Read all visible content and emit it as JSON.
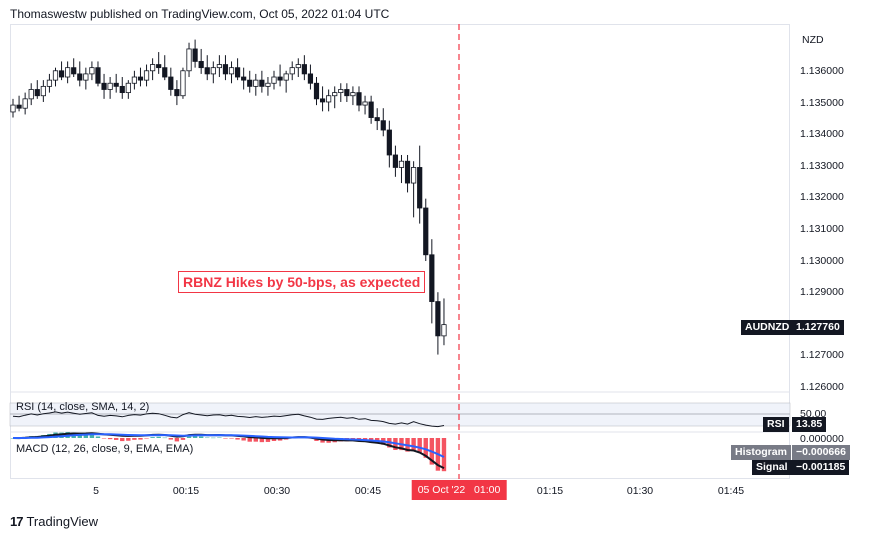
{
  "header": {
    "publisher_line": "Thomaswestw published on TradingView.com, Oct 05, 2022 01:04 UTC"
  },
  "price_axis": {
    "currency": "NZD",
    "ticks": [
      "1.136000",
      "1.135000",
      "1.134000",
      "1.133000",
      "1.132000",
      "1.131000",
      "1.130000",
      "1.129000",
      "1.128000",
      "1.127000",
      "1.126000"
    ],
    "symbol_tag": "AUDNZD",
    "last_price": "1.127760"
  },
  "annotation": {
    "text": "RBNZ Hikes by 50-bps, as expected",
    "color": "#f23645"
  },
  "rsi": {
    "label": "RSI (14, close, SMA, 14, 2)",
    "level": "50.00",
    "tag": "RSI",
    "value": "13.85"
  },
  "macd": {
    "label": "MACD (12, 26, close, 9, EMA, EMA)",
    "zero": "0.000000",
    "histogram_tag": "Histogram",
    "histogram_value": "−0.000666",
    "signal_tag": "Signal",
    "signal_value": "−0.001185"
  },
  "time_axis": {
    "labels": [
      "5",
      "00:15",
      "00:30",
      "00:45",
      "01:15",
      "01:30",
      "01:45"
    ],
    "highlight_date": "05 Oct '22",
    "highlight_time": "01:00"
  },
  "footer": {
    "logo_icon": "tradingview-logo-icon",
    "brand": "TradingView"
  },
  "colors": {
    "up": "#ffffff",
    "down": "#131722",
    "accent": "#f23645",
    "macd_line": "#131722",
    "signal_line": "#2962ff"
  },
  "chart_data": {
    "type": "candlestick",
    "symbol": "AUDNZD",
    "interval_minutes": 1,
    "price_ylim": [
      1.1256,
      1.1374
    ],
    "event_time": "01:00",
    "candles": [
      {
        "t": "23:53",
        "o": 1.13458,
        "h": 1.135,
        "l": 1.1344,
        "c": 1.1348
      },
      {
        "t": "23:54",
        "o": 1.1348,
        "h": 1.1351,
        "l": 1.1346,
        "c": 1.1347
      },
      {
        "t": "23:55",
        "o": 1.1347,
        "h": 1.1352,
        "l": 1.1345,
        "c": 1.135
      },
      {
        "t": "23:56",
        "o": 1.135,
        "h": 1.1355,
        "l": 1.1348,
        "c": 1.1353
      },
      {
        "t": "23:57",
        "o": 1.1353,
        "h": 1.1356,
        "l": 1.135,
        "c": 1.1351
      },
      {
        "t": "23:58",
        "o": 1.1351,
        "h": 1.1356,
        "l": 1.1349,
        "c": 1.1354
      },
      {
        "t": "23:59",
        "o": 1.1354,
        "h": 1.1358,
        "l": 1.1352,
        "c": 1.1356
      },
      {
        "t": "00:00",
        "o": 1.1356,
        "h": 1.136,
        "l": 1.1354,
        "c": 1.1359
      },
      {
        "t": "00:01",
        "o": 1.1359,
        "h": 1.1362,
        "l": 1.1356,
        "c": 1.1357
      },
      {
        "t": "00:02",
        "o": 1.1357,
        "h": 1.1362,
        "l": 1.1355,
        "c": 1.136
      },
      {
        "t": "00:03",
        "o": 1.136,
        "h": 1.1363,
        "l": 1.1357,
        "c": 1.1358
      },
      {
        "t": "00:04",
        "o": 1.1358,
        "h": 1.1362,
        "l": 1.1354,
        "c": 1.1356
      },
      {
        "t": "00:05",
        "o": 1.1356,
        "h": 1.136,
        "l": 1.1353,
        "c": 1.1358
      },
      {
        "t": "00:06",
        "o": 1.1358,
        "h": 1.1362,
        "l": 1.1356,
        "c": 1.136
      },
      {
        "t": "00:07",
        "o": 1.136,
        "h": 1.1362,
        "l": 1.1354,
        "c": 1.1355
      },
      {
        "t": "00:08",
        "o": 1.1355,
        "h": 1.1358,
        "l": 1.135,
        "c": 1.1353
      },
      {
        "t": "00:09",
        "o": 1.1353,
        "h": 1.1357,
        "l": 1.135,
        "c": 1.1355
      },
      {
        "t": "00:10",
        "o": 1.1355,
        "h": 1.1358,
        "l": 1.1352,
        "c": 1.1354
      },
      {
        "t": "00:11",
        "o": 1.1354,
        "h": 1.1357,
        "l": 1.135,
        "c": 1.1352
      },
      {
        "t": "00:12",
        "o": 1.1352,
        "h": 1.1356,
        "l": 1.135,
        "c": 1.1355
      },
      {
        "t": "00:13",
        "o": 1.1355,
        "h": 1.1359,
        "l": 1.1353,
        "c": 1.1357
      },
      {
        "t": "00:14",
        "o": 1.1357,
        "h": 1.136,
        "l": 1.1354,
        "c": 1.1356
      },
      {
        "t": "00:15",
        "o": 1.1356,
        "h": 1.1361,
        "l": 1.1354,
        "c": 1.1359
      },
      {
        "t": "00:16",
        "o": 1.1359,
        "h": 1.1363,
        "l": 1.1356,
        "c": 1.1361
      },
      {
        "t": "00:17",
        "o": 1.1361,
        "h": 1.1365,
        "l": 1.1358,
        "c": 1.136
      },
      {
        "t": "00:18",
        "o": 1.136,
        "h": 1.1364,
        "l": 1.1356,
        "c": 1.1357
      },
      {
        "t": "00:19",
        "o": 1.1357,
        "h": 1.136,
        "l": 1.1351,
        "c": 1.1353
      },
      {
        "t": "00:20",
        "o": 1.1353,
        "h": 1.1356,
        "l": 1.1348,
        "c": 1.1351
      },
      {
        "t": "00:21",
        "o": 1.1351,
        "h": 1.136,
        "l": 1.135,
        "c": 1.1359
      },
      {
        "t": "00:22",
        "o": 1.1359,
        "h": 1.1368,
        "l": 1.1357,
        "c": 1.1366
      },
      {
        "t": "00:23",
        "o": 1.1366,
        "h": 1.1369,
        "l": 1.136,
        "c": 1.1362
      },
      {
        "t": "00:24",
        "o": 1.1362,
        "h": 1.1366,
        "l": 1.1358,
        "c": 1.136
      },
      {
        "t": "00:25",
        "o": 1.136,
        "h": 1.1364,
        "l": 1.1356,
        "c": 1.1358
      },
      {
        "t": "00:26",
        "o": 1.1358,
        "h": 1.1362,
        "l": 1.1355,
        "c": 1.136
      },
      {
        "t": "00:27",
        "o": 1.136,
        "h": 1.1364,
        "l": 1.1357,
        "c": 1.1361
      },
      {
        "t": "00:28",
        "o": 1.1361,
        "h": 1.1364,
        "l": 1.1356,
        "c": 1.1358
      },
      {
        "t": "00:29",
        "o": 1.1358,
        "h": 1.1362,
        "l": 1.1355,
        "c": 1.136
      },
      {
        "t": "00:30",
        "o": 1.136,
        "h": 1.1363,
        "l": 1.1356,
        "c": 1.1357
      },
      {
        "t": "00:31",
        "o": 1.1357,
        "h": 1.136,
        "l": 1.1353,
        "c": 1.1356
      },
      {
        "t": "00:32",
        "o": 1.1356,
        "h": 1.1359,
        "l": 1.1352,
        "c": 1.1354
      },
      {
        "t": "00:33",
        "o": 1.1354,
        "h": 1.1358,
        "l": 1.1351,
        "c": 1.1356
      },
      {
        "t": "00:34",
        "o": 1.1356,
        "h": 1.1359,
        "l": 1.1352,
        "c": 1.1354
      },
      {
        "t": "00:35",
        "o": 1.1354,
        "h": 1.1357,
        "l": 1.1351,
        "c": 1.1355
      },
      {
        "t": "00:36",
        "o": 1.1355,
        "h": 1.1359,
        "l": 1.1353,
        "c": 1.1357
      },
      {
        "t": "00:37",
        "o": 1.1357,
        "h": 1.1361,
        "l": 1.1354,
        "c": 1.1356
      },
      {
        "t": "00:38",
        "o": 1.1356,
        "h": 1.1359,
        "l": 1.1352,
        "c": 1.1358
      },
      {
        "t": "00:39",
        "o": 1.1358,
        "h": 1.1362,
        "l": 1.1356,
        "c": 1.136
      },
      {
        "t": "00:40",
        "o": 1.136,
        "h": 1.1363,
        "l": 1.1357,
        "c": 1.1361
      },
      {
        "t": "00:41",
        "o": 1.1361,
        "h": 1.1364,
        "l": 1.1356,
        "c": 1.1358
      },
      {
        "t": "00:42",
        "o": 1.1358,
        "h": 1.1361,
        "l": 1.1353,
        "c": 1.1355
      },
      {
        "t": "00:43",
        "o": 1.1355,
        "h": 1.1357,
        "l": 1.1348,
        "c": 1.135
      },
      {
        "t": "00:44",
        "o": 1.135,
        "h": 1.1354,
        "l": 1.1346,
        "c": 1.1349
      },
      {
        "t": "00:45",
        "o": 1.1349,
        "h": 1.1353,
        "l": 1.1346,
        "c": 1.1351
      },
      {
        "t": "00:46",
        "o": 1.1351,
        "h": 1.1354,
        "l": 1.1347,
        "c": 1.1352
      },
      {
        "t": "00:47",
        "o": 1.1352,
        "h": 1.1355,
        "l": 1.1349,
        "c": 1.1353
      },
      {
        "t": "00:48",
        "o": 1.1353,
        "h": 1.1355,
        "l": 1.1349,
        "c": 1.1351
      },
      {
        "t": "00:49",
        "o": 1.1351,
        "h": 1.1354,
        "l": 1.1348,
        "c": 1.1352
      },
      {
        "t": "00:50",
        "o": 1.1352,
        "h": 1.1354,
        "l": 1.1346,
        "c": 1.1348
      },
      {
        "t": "00:51",
        "o": 1.1348,
        "h": 1.1351,
        "l": 1.1345,
        "c": 1.1349
      },
      {
        "t": "00:52",
        "o": 1.1349,
        "h": 1.1351,
        "l": 1.1342,
        "c": 1.1344
      },
      {
        "t": "00:53",
        "o": 1.1344,
        "h": 1.1347,
        "l": 1.134,
        "c": 1.1343
      },
      {
        "t": "00:54",
        "o": 1.1343,
        "h": 1.1347,
        "l": 1.1338,
        "c": 1.134
      },
      {
        "t": "00:55",
        "o": 1.134,
        "h": 1.1343,
        "l": 1.1328,
        "c": 1.1332
      },
      {
        "t": "00:56",
        "o": 1.1332,
        "h": 1.1335,
        "l": 1.1325,
        "c": 1.1328
      },
      {
        "t": "00:57",
        "o": 1.1328,
        "h": 1.1332,
        "l": 1.1323,
        "c": 1.133
      },
      {
        "t": "00:58",
        "o": 1.133,
        "h": 1.1332,
        "l": 1.132,
        "c": 1.1323
      },
      {
        "t": "00:59",
        "o": 1.1323,
        "h": 1.133,
        "l": 1.1312,
        "c": 1.1328
      },
      {
        "t": "01:00",
        "o": 1.1328,
        "h": 1.1335,
        "l": 1.131,
        "c": 1.1315
      },
      {
        "t": "01:01",
        "o": 1.1315,
        "h": 1.1318,
        "l": 1.1298,
        "c": 1.13
      },
      {
        "t": "01:02",
        "o": 1.13,
        "h": 1.1305,
        "l": 1.1278,
        "c": 1.1285
      },
      {
        "t": "01:03",
        "o": 1.1285,
        "h": 1.1288,
        "l": 1.1268,
        "c": 1.1274
      },
      {
        "t": "01:04",
        "o": 1.1274,
        "h": 1.1286,
        "l": 1.1271,
        "c": 1.12776
      }
    ]
  }
}
